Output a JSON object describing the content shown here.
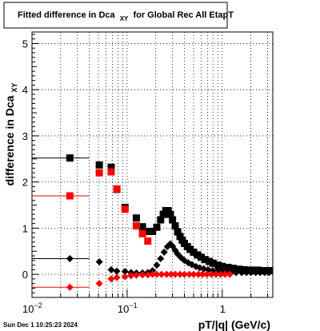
{
  "title_box": {
    "title_main": "Fitted difference in Dca",
    "title_sub": "XY",
    "title_tail": " for Global Rec All EtapT"
  },
  "footer": {
    "timestamp": "Sun Dec  1 10:25:23 2024"
  },
  "chart_data": {
    "type": "scatter",
    "x_scale": "log",
    "xlim": [
      0.01,
      3.4
    ],
    "ylim": [
      -0.5,
      5.25
    ],
    "xlabel": "pT/|q| (GeV/c)",
    "ylabel_main": "difference in Dca",
    "ylabel_sub": "XY",
    "x_tick_labels": [
      {
        "value": 0.01,
        "base": "10",
        "exp": "−2"
      },
      {
        "value": 0.1,
        "base": "10",
        "exp": "−1"
      },
      {
        "value": 1,
        "base": "1",
        "exp": ""
      }
    ],
    "y_ticks": [
      0,
      1,
      2,
      3,
      4,
      5
    ],
    "grid": true,
    "series": [
      {
        "color": "#000000",
        "marker": "square",
        "points": [
          {
            "x": 0.025,
            "y": 2.52,
            "xerr": [
              0.01,
              0.04
            ]
          },
          {
            "x": 0.051,
            "y": 2.37
          },
          {
            "x": 0.068,
            "y": 2.32
          },
          {
            "x": 0.078,
            "y": 1.84
          },
          {
            "x": 0.095,
            "y": 1.45
          },
          {
            "x": 0.125,
            "y": 1.22
          },
          {
            "x": 0.145,
            "y": 1.03
          },
          {
            "x": 0.165,
            "y": 0.93
          },
          {
            "x": 0.185,
            "y": 0.93
          },
          {
            "x": 0.205,
            "y": 1.02
          },
          {
            "x": 0.225,
            "y": 1.18
          },
          {
            "x": 0.24,
            "y": 1.3
          },
          {
            "x": 0.255,
            "y": 1.38
          },
          {
            "x": 0.27,
            "y": 1.38
          },
          {
            "x": 0.285,
            "y": 1.3
          },
          {
            "x": 0.3,
            "y": 1.18
          },
          {
            "x": 0.32,
            "y": 1.05
          },
          {
            "x": 0.34,
            "y": 0.92
          },
          {
            "x": 0.36,
            "y": 0.82
          },
          {
            "x": 0.38,
            "y": 0.74
          },
          {
            "x": 0.4,
            "y": 0.67
          },
          {
            "x": 0.43,
            "y": 0.6
          },
          {
            "x": 0.46,
            "y": 0.54
          },
          {
            "x": 0.5,
            "y": 0.48
          },
          {
            "x": 0.55,
            "y": 0.42
          },
          {
            "x": 0.6,
            "y": 0.37
          },
          {
            "x": 0.66,
            "y": 0.32
          },
          {
            "x": 0.73,
            "y": 0.28
          },
          {
            "x": 0.8,
            "y": 0.24
          },
          {
            "x": 0.9,
            "y": 0.2
          },
          {
            "x": 1.0,
            "y": 0.17
          },
          {
            "x": 1.15,
            "y": 0.15
          },
          {
            "x": 1.3,
            "y": 0.13
          },
          {
            "x": 1.5,
            "y": 0.11
          },
          {
            "x": 1.7,
            "y": 0.1
          },
          {
            "x": 1.9,
            "y": 0.09
          },
          {
            "x": 2.1,
            "y": 0.09
          },
          {
            "x": 2.35,
            "y": 0.09
          },
          {
            "x": 2.6,
            "y": 0.08
          },
          {
            "x": 2.85,
            "y": 0.08
          },
          {
            "x": 3.1,
            "y": 0.08
          }
        ]
      },
      {
        "color": "#ff0000",
        "marker": "square",
        "points": [
          {
            "x": 0.025,
            "y": 1.7,
            "xerr": [
              0.01,
              0.04
            ]
          },
          {
            "x": 0.051,
            "y": 2.2
          },
          {
            "x": 0.068,
            "y": 2.22
          },
          {
            "x": 0.078,
            "y": 1.85
          },
          {
            "x": 0.095,
            "y": 1.41
          },
          {
            "x": 0.125,
            "y": 1.05
          },
          {
            "x": 0.145,
            "y": 0.88
          },
          {
            "x": 0.165,
            "y": 0.72
          }
        ]
      },
      {
        "color": "#000000",
        "marker": "diamond",
        "points": [
          {
            "x": 0.025,
            "y": 0.34,
            "xerr": [
              0.01,
              0.04
            ]
          },
          {
            "x": 0.051,
            "y": 0.27
          },
          {
            "x": 0.068,
            "y": 0.1
          },
          {
            "x": 0.078,
            "y": 0.07
          },
          {
            "x": 0.095,
            "y": 0.06
          },
          {
            "x": 0.11,
            "y": 0.04
          },
          {
            "x": 0.125,
            "y": 0.03
          },
          {
            "x": 0.145,
            "y": 0.03
          },
          {
            "x": 0.165,
            "y": 0.04
          },
          {
            "x": 0.185,
            "y": 0.08
          },
          {
            "x": 0.205,
            "y": 0.2
          },
          {
            "x": 0.225,
            "y": 0.34
          },
          {
            "x": 0.245,
            "y": 0.48
          },
          {
            "x": 0.265,
            "y": 0.6
          },
          {
            "x": 0.285,
            "y": 0.66
          },
          {
            "x": 0.3,
            "y": 0.61
          },
          {
            "x": 0.32,
            "y": 0.52
          },
          {
            "x": 0.34,
            "y": 0.44
          },
          {
            "x": 0.37,
            "y": 0.36
          },
          {
            "x": 0.4,
            "y": 0.3
          },
          {
            "x": 0.44,
            "y": 0.25
          },
          {
            "x": 0.48,
            "y": 0.21
          },
          {
            "x": 0.53,
            "y": 0.17
          },
          {
            "x": 0.58,
            "y": 0.14
          },
          {
            "x": 0.64,
            "y": 0.12
          },
          {
            "x": 0.71,
            "y": 0.1
          },
          {
            "x": 0.79,
            "y": 0.08
          },
          {
            "x": 0.88,
            "y": 0.07
          },
          {
            "x": 0.98,
            "y": 0.06
          },
          {
            "x": 1.1,
            "y": 0.05
          },
          {
            "x": 1.25,
            "y": 0.05
          },
          {
            "x": 1.4,
            "y": 0.04
          },
          {
            "x": 1.6,
            "y": 0.04
          },
          {
            "x": 1.8,
            "y": 0.04
          },
          {
            "x": 2.0,
            "y": 0.04
          },
          {
            "x": 2.25,
            "y": 0.04
          },
          {
            "x": 2.5,
            "y": 0.04
          },
          {
            "x": 2.8,
            "y": 0.04
          },
          {
            "x": 3.1,
            "y": 0.04
          }
        ]
      },
      {
        "color": "#ff0000",
        "marker": "diamond",
        "points": [
          {
            "x": 0.025,
            "y": -0.28,
            "xerr": [
              0.01,
              0.04
            ]
          },
          {
            "x": 0.051,
            "y": -0.2
          },
          {
            "x": 0.068,
            "y": -0.1
          },
          {
            "x": 0.078,
            "y": -0.07
          },
          {
            "x": 0.095,
            "y": -0.05
          },
          {
            "x": 0.11,
            "y": -0.03
          },
          {
            "x": 0.125,
            "y": -0.02
          },
          {
            "x": 0.145,
            "y": -0.01
          },
          {
            "x": 0.165,
            "y": -0.01
          },
          {
            "x": 0.185,
            "y": 0.0
          },
          {
            "x": 0.205,
            "y": 0.0
          },
          {
            "x": 0.23,
            "y": 0.0
          },
          {
            "x": 0.26,
            "y": 0.0
          },
          {
            "x": 0.29,
            "y": 0.0
          },
          {
            "x": 0.32,
            "y": 0.0
          },
          {
            "x": 0.36,
            "y": 0.0
          },
          {
            "x": 0.4,
            "y": 0.0
          },
          {
            "x": 0.45,
            "y": 0.0
          },
          {
            "x": 0.5,
            "y": 0.0
          },
          {
            "x": 0.56,
            "y": 0.0
          },
          {
            "x": 0.62,
            "y": 0.0
          },
          {
            "x": 0.69,
            "y": 0.0
          },
          {
            "x": 0.77,
            "y": 0.0
          },
          {
            "x": 0.86,
            "y": 0.0
          },
          {
            "x": 0.96,
            "y": 0.0
          },
          {
            "x": 1.07,
            "y": 0.0
          },
          {
            "x": 1.2,
            "y": 0.0
          }
        ]
      }
    ]
  }
}
